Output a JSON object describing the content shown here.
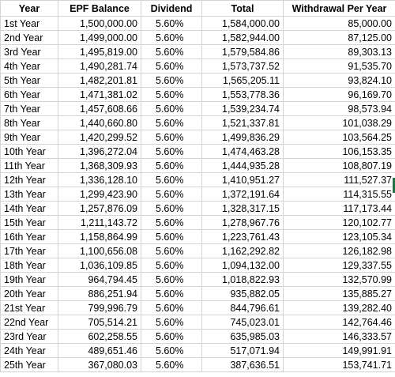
{
  "table": {
    "headers": [
      "Year",
      "EPF Balance",
      "Dividend",
      "Total",
      "Withdrawal Per Year"
    ],
    "rows": [
      [
        "1st Year",
        "1,500,000.00",
        "5.60%",
        "1,584,000.00",
        "85,000.00"
      ],
      [
        "2nd Year",
        "1,499,000.00",
        "5.60%",
        "1,582,944.00",
        "87,125.00"
      ],
      [
        "3rd Year",
        "1,495,819.00",
        "5.60%",
        "1,579,584.86",
        "89,303.13"
      ],
      [
        "4th Year",
        "1,490,281.74",
        "5.60%",
        "1,573,737.52",
        "91,535.70"
      ],
      [
        "5th Year",
        "1,482,201.81",
        "5.60%",
        "1,565,205.11",
        "93,824.10"
      ],
      [
        "6th Year",
        "1,471,381.02",
        "5.60%",
        "1,553,778.36",
        "96,169.70"
      ],
      [
        "7th Year",
        "1,457,608.66",
        "5.60%",
        "1,539,234.74",
        "98,573.94"
      ],
      [
        "8th Year",
        "1,440,660.80",
        "5.60%",
        "1,521,337.81",
        "101,038.29"
      ],
      [
        "9th Year",
        "1,420,299.52",
        "5.60%",
        "1,499,836.29",
        "103,564.25"
      ],
      [
        "10th Year",
        "1,396,272.04",
        "5.60%",
        "1,474,463.28",
        "106,153.35"
      ],
      [
        "11th Year",
        "1,368,309.93",
        "5.60%",
        "1,444,935.28",
        "108,807.19"
      ],
      [
        "12th Year",
        "1,336,128.10",
        "5.60%",
        "1,410,951.27",
        "111,527.37"
      ],
      [
        "13th Year",
        "1,299,423.90",
        "5.60%",
        "1,372,191.64",
        "114,315.55"
      ],
      [
        "14th Year",
        "1,257,876.09",
        "5.60%",
        "1,328,317.15",
        "117,173.44"
      ],
      [
        "15th Year",
        "1,211,143.72",
        "5.60%",
        "1,278,967.76",
        "120,102.77"
      ],
      [
        "16th Year",
        "1,158,864.99",
        "5.60%",
        "1,223,761.43",
        "123,105.34"
      ],
      [
        "17th Year",
        "1,100,656.08",
        "5.60%",
        "1,162,292.82",
        "126,182.98"
      ],
      [
        "18th Year",
        "1,036,109.85",
        "5.60%",
        "1,094,132.00",
        "129,337.55"
      ],
      [
        "19th Year",
        "964,794.45",
        "5.60%",
        "1,018,822.93",
        "132,570.99"
      ],
      [
        "20th Year",
        "886,251.94",
        "5.60%",
        "935,882.05",
        "135,885.27"
      ],
      [
        "21st Year",
        "799,996.79",
        "5.60%",
        "844,796.61",
        "139,282.40"
      ],
      [
        "22nd Year",
        "705,514.21",
        "5.60%",
        "745,023.01",
        "142,764.46"
      ],
      [
        "23rd Year",
        "602,258.55",
        "5.60%",
        "635,985.03",
        "146,333.57"
      ],
      [
        "24th Year",
        "489,651.46",
        "5.60%",
        "517,071.94",
        "149,991.91"
      ],
      [
        "25th Year",
        "367,080.03",
        "5.60%",
        "387,636.51",
        "153,741.71"
      ]
    ]
  }
}
